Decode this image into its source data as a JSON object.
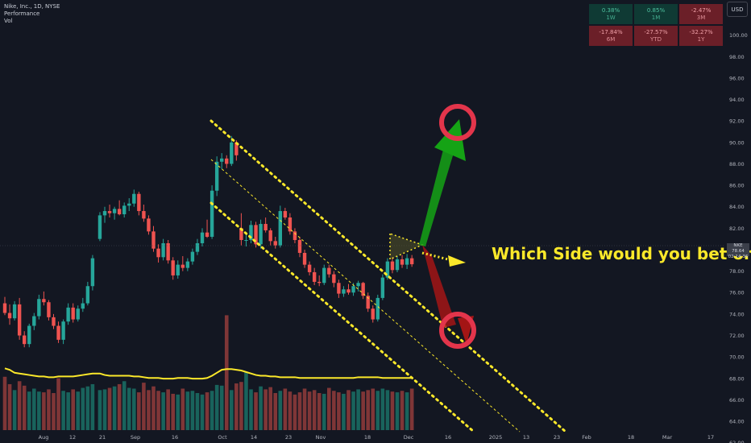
{
  "legend": {
    "symbol": "Nike, Inc., 1D, NYSE",
    "indicator1": "Performance",
    "indicator2": "Vol"
  },
  "currency": "USD",
  "performance": [
    {
      "value": "0.38%",
      "label": "1W",
      "dir": "up"
    },
    {
      "value": "0.85%",
      "label": "1M",
      "dir": "up"
    },
    {
      "value": "-2.47%",
      "label": "3M",
      "dir": "down"
    },
    {
      "value": "-17.84%",
      "label": "6M",
      "dir": "down"
    },
    {
      "value": "-27.57%",
      "label": "YTD",
      "dir": "down"
    },
    {
      "value": "-32.27%",
      "label": "1Y",
      "dir": "down"
    }
  ],
  "annotation": "Which Side would you bet on?",
  "price_tag": {
    "symbol": "NKE",
    "price": "78.64",
    "countdown": "02:14:36"
  },
  "colors": {
    "background": "#131722",
    "up": "#26a69a",
    "down": "#ef5350",
    "channel": "#fbe82a",
    "volume_ma": "#fbe82a",
    "arrow_up": "#15a315",
    "arrow_down": "#a31515",
    "circle": "#e3354b"
  },
  "chart_data": {
    "type": "candlestick",
    "title": "Nike, Inc., 1D, NYSE",
    "ylim": [
      61,
      102
    ],
    "y_ticks": [
      62,
      64,
      66,
      68,
      70,
      72,
      74,
      76,
      78,
      80,
      82,
      84,
      86,
      88,
      90,
      92,
      94,
      96,
      98,
      100
    ],
    "x_tick_labels": [
      "Aug",
      "12",
      "21",
      "Sep",
      "16",
      "Oct",
      "14",
      "23",
      "Nov",
      "18",
      "Dec",
      "16",
      "2025",
      "13",
      "23",
      "Feb",
      "18",
      "Mar",
      "17"
    ],
    "series": [
      {
        "name": "NKE",
        "type": "candlestick",
        "ohlc": [
          [
            75.0,
            75.6,
            73.9,
            74.1
          ],
          [
            74.1,
            74.9,
            73.0,
            73.6
          ],
          [
            73.6,
            75.2,
            73.4,
            74.9
          ],
          [
            74.9,
            75.5,
            71.6,
            72.0
          ],
          [
            72.0,
            72.4,
            70.9,
            71.2
          ],
          [
            71.2,
            73.1,
            70.9,
            72.9
          ],
          [
            72.9,
            74.1,
            72.5,
            73.8
          ],
          [
            73.8,
            75.8,
            73.5,
            75.4
          ],
          [
            75.4,
            76.1,
            74.8,
            75.1
          ],
          [
            75.1,
            75.3,
            73.4,
            73.7
          ],
          [
            73.7,
            74.0,
            72.6,
            72.9
          ],
          [
            72.9,
            73.3,
            71.3,
            71.6
          ],
          [
            71.6,
            73.5,
            71.2,
            73.3
          ],
          [
            73.3,
            75.0,
            73.0,
            74.6
          ],
          [
            74.6,
            75.0,
            73.2,
            73.5
          ],
          [
            73.5,
            74.8,
            73.3,
            74.5
          ],
          [
            74.5,
            75.5,
            74.2,
            75.0
          ],
          [
            75.0,
            77.0,
            74.8,
            76.6
          ],
          [
            76.6,
            79.5,
            76.2,
            79.2
          ],
          [
            81.0,
            83.5,
            80.8,
            83.2
          ],
          [
            83.2,
            84.0,
            82.5,
            83.6
          ],
          [
            83.6,
            84.2,
            83.0,
            83.4
          ],
          [
            83.4,
            84.0,
            82.8,
            83.8
          ],
          [
            83.8,
            84.6,
            83.2,
            83.3
          ],
          [
            83.3,
            84.4,
            83.0,
            84.1
          ],
          [
            84.1,
            84.8,
            83.6,
            84.3
          ],
          [
            84.3,
            85.6,
            84.0,
            85.2
          ],
          [
            85.2,
            85.4,
            83.2,
            83.6
          ],
          [
            83.6,
            84.2,
            82.6,
            82.9
          ],
          [
            82.9,
            83.2,
            81.4,
            81.7
          ],
          [
            81.7,
            82.2,
            79.8,
            80.1
          ],
          [
            80.1,
            80.5,
            78.8,
            79.3
          ],
          [
            79.3,
            81.0,
            79.0,
            80.6
          ],
          [
            80.6,
            80.9,
            78.7,
            79.0
          ],
          [
            79.0,
            79.3,
            77.2,
            77.6
          ],
          [
            77.6,
            79.0,
            77.3,
            78.6
          ],
          [
            78.6,
            79.4,
            78.0,
            78.3
          ],
          [
            78.3,
            79.2,
            78.0,
            78.9
          ],
          [
            78.9,
            80.1,
            78.6,
            79.8
          ],
          [
            79.8,
            81.0,
            79.5,
            80.6
          ],
          [
            80.6,
            82.0,
            80.3,
            81.6
          ],
          [
            81.6,
            82.8,
            81.1,
            81.2
          ],
          [
            81.2,
            86.0,
            81.0,
            85.5
          ],
          [
            85.5,
            88.7,
            85.0,
            88.2
          ],
          [
            88.2,
            89.0,
            87.5,
            88.5
          ],
          [
            88.5,
            88.8,
            87.6,
            88.0
          ],
          [
            88.0,
            90.6,
            87.8,
            90.0
          ],
          [
            90.0,
            90.2,
            88.3,
            88.8
          ],
          [
            82.0,
            83.4,
            80.4,
            80.9
          ],
          [
            80.9,
            81.6,
            80.3,
            80.9
          ],
          [
            80.9,
            82.7,
            80.6,
            82.3
          ],
          [
            82.3,
            82.6,
            80.2,
            80.5
          ],
          [
            80.5,
            82.8,
            80.1,
            82.4
          ],
          [
            82.4,
            83.0,
            81.6,
            81.8
          ],
          [
            81.8,
            82.0,
            80.4,
            80.8
          ],
          [
            80.8,
            81.2,
            80.1,
            80.4
          ],
          [
            80.4,
            84.1,
            80.2,
            83.6
          ],
          [
            83.6,
            83.9,
            82.8,
            83.0
          ],
          [
            83.0,
            83.4,
            81.4,
            81.7
          ],
          [
            81.7,
            82.0,
            80.6,
            80.9
          ],
          [
            80.9,
            81.2,
            79.3,
            79.7
          ],
          [
            79.7,
            80.0,
            78.3,
            78.6
          ],
          [
            78.6,
            78.9,
            77.6,
            77.9
          ],
          [
            77.9,
            78.3,
            76.7,
            77.0
          ],
          [
            77.0,
            77.6,
            76.6,
            76.9
          ],
          [
            76.9,
            78.6,
            76.7,
            78.3
          ],
          [
            78.3,
            78.6,
            77.4,
            77.7
          ],
          [
            77.7,
            78.0,
            76.5,
            76.9
          ],
          [
            76.9,
            77.2,
            75.5,
            75.9
          ],
          [
            75.9,
            76.6,
            75.6,
            76.3
          ],
          [
            76.3,
            76.8,
            75.8,
            76.0
          ],
          [
            76.0,
            76.9,
            75.7,
            76.6
          ],
          [
            76.6,
            77.1,
            76.1,
            76.9
          ],
          [
            76.9,
            77.0,
            75.4,
            75.7
          ],
          [
            75.7,
            76.0,
            74.2,
            74.5
          ],
          [
            74.5,
            74.8,
            73.2,
            73.5
          ],
          [
            73.5,
            75.8,
            73.3,
            75.5
          ],
          [
            75.5,
            77.7,
            75.3,
            77.4
          ],
          [
            77.4,
            79.2,
            77.2,
            78.9
          ],
          [
            78.9,
            79.3,
            77.8,
            78.1
          ],
          [
            78.1,
            79.4,
            77.9,
            79.1
          ],
          [
            79.1,
            79.5,
            78.3,
            78.6
          ],
          [
            78.6,
            79.6,
            78.2,
            79.2
          ],
          [
            79.2,
            79.5,
            78.4,
            78.64
          ]
        ]
      },
      {
        "name": "Vol",
        "type": "volume",
        "values": [
          7.2,
          6.2,
          5.4,
          6.6,
          6.0,
          5.2,
          5.6,
          5.2,
          5.1,
          5.5,
          5.0,
          7.0,
          5.3,
          5.1,
          5.5,
          5.2,
          5.7,
          5.9,
          6.2,
          5.4,
          5.5,
          5.7,
          5.9,
          6.2,
          6.6,
          5.7,
          5.6,
          5.1,
          6.4,
          5.4,
          5.9,
          5.3,
          5.1,
          5.5,
          4.9,
          4.8,
          5.6,
          5.2,
          5.3,
          5.0,
          4.8,
          5.1,
          5.3,
          6.1,
          6.0,
          15.5,
          5.4,
          6.3,
          6.5,
          7.8,
          5.5,
          5.1,
          5.9,
          5.5,
          5.8,
          5.0,
          5.3,
          5.6,
          5.2,
          4.8,
          5.1,
          5.6,
          5.2,
          5.4,
          5.0,
          4.9,
          5.7,
          5.3,
          5.1,
          4.9,
          5.4,
          5.2,
          5.5,
          5.2,
          5.4,
          5.6,
          5.3,
          5.6,
          5.4,
          5.2,
          5.1,
          5.3,
          5.1,
          5.6
        ]
      },
      {
        "name": "Vol MA",
        "type": "line",
        "values": [
          6.6,
          6.4,
          6.0,
          5.9,
          5.8,
          5.7,
          5.6,
          5.5,
          5.5,
          5.4,
          5.4,
          5.5,
          5.5,
          5.5,
          5.5,
          5.6,
          5.7,
          5.8,
          5.9,
          5.9,
          5.7,
          5.6,
          5.6,
          5.6,
          5.6,
          5.6,
          5.5,
          5.5,
          5.4,
          5.3,
          5.3,
          5.3,
          5.2,
          5.2,
          5.2,
          5.3,
          5.3,
          5.3,
          5.2,
          5.2,
          5.2,
          5.3,
          5.6,
          6.0,
          6.4,
          6.5,
          6.5,
          6.4,
          6.3,
          6.1,
          5.9,
          5.7,
          5.6,
          5.6,
          5.5,
          5.5,
          5.4,
          5.4,
          5.4,
          5.4,
          5.3,
          5.3,
          5.3,
          5.3,
          5.3,
          5.3,
          5.3,
          5.3,
          5.3,
          5.3,
          5.3,
          5.3,
          5.4,
          5.4,
          5.4,
          5.4,
          5.4,
          5.3,
          5.3,
          5.3,
          5.3,
          5.3,
          5.3,
          5.3
        ]
      }
    ],
    "grid": false,
    "legend": "top-left"
  }
}
